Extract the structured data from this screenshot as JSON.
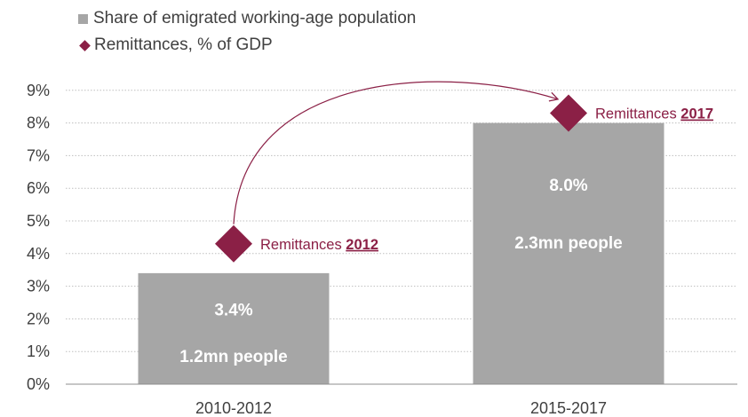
{
  "colors": {
    "bar": "#a6a6a6",
    "remittance": "#8b2046",
    "text": "#404040",
    "grid": "#bfbfbf"
  },
  "chart_data": {
    "type": "bar",
    "categories": [
      "2010-2012",
      "2015-2017"
    ],
    "ylim": [
      0,
      9
    ],
    "y_ticks": [
      "0%",
      "1%",
      "2%",
      "3%",
      "4%",
      "5%",
      "6%",
      "7%",
      "8%",
      "9%"
    ],
    "grid": true,
    "legend_position": "top-left",
    "series": [
      {
        "name": "Share of emigrated working-age population",
        "kind": "bar",
        "values": [
          3.4,
          8.0
        ],
        "value_labels": [
          "3.4%",
          "8.0%"
        ],
        "secondary_labels": [
          "1.2mn people",
          "2.3mn people"
        ]
      },
      {
        "name": "Remittances, % of GDP",
        "kind": "marker-diamond",
        "values": [
          4.3,
          8.3
        ]
      }
    ],
    "annotations": [
      {
        "text": "Remittances ",
        "year": "2012",
        "category_index": 0
      },
      {
        "text": "Remittances ",
        "year": "2017",
        "category_index": 1
      }
    ],
    "arrow": {
      "from_category": 0,
      "to_category": 1,
      "from_value": 4.9,
      "to_value": 9.0
    }
  }
}
